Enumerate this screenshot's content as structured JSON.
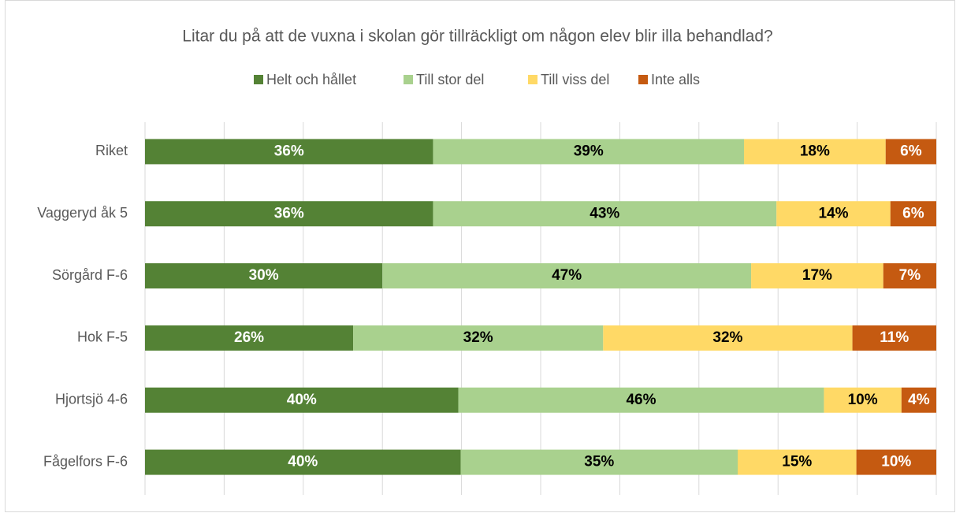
{
  "chart_data": {
    "type": "stacked_bar_horizontal",
    "title": "Litar du på att de vuxna i skolan gör tillräckligt om någon elev blir illa behandlad?",
    "categories": [
      "Riket",
      "Vaggeryd åk 5",
      "Sörgård F-6",
      "Hok F-5",
      "Hjortsjö 4-6",
      "Fågelfors F-6"
    ],
    "series": [
      {
        "name": "Helt och hållet",
        "color": "#548235",
        "label_color": "#ffffff",
        "values": [
          36.4,
          36.4,
          30.0,
          26.3,
          39.6,
          39.9
        ],
        "value_labels": [
          "36%",
          "36%",
          "30%",
          "26%",
          "40%",
          "40%"
        ]
      },
      {
        "name": "Till stor del",
        "color": "#a9d18e",
        "label_color": "#000000",
        "values": [
          39.3,
          43.4,
          46.6,
          31.6,
          46.2,
          35.0
        ],
        "value_labels": [
          "39%",
          "43%",
          "47%",
          "32%",
          "46%",
          "35%"
        ]
      },
      {
        "name": "Till viss del",
        "color": "#ffd966",
        "label_color": "#000000",
        "values": [
          17.9,
          14.4,
          16.7,
          31.5,
          9.8,
          15.0
        ],
        "value_labels": [
          "18%",
          "14%",
          "17%",
          "32%",
          "10%",
          "15%"
        ]
      },
      {
        "name": "Inte alls",
        "color": "#c55a11",
        "label_color": "#ffffff",
        "values": [
          6.4,
          5.8,
          6.7,
          10.6,
          4.4,
          10.1
        ],
        "value_labels": [
          "6%",
          "6%",
          "7%",
          "11%",
          "4%",
          "10%"
        ]
      }
    ],
    "xlim": [
      0,
      100
    ],
    "xticks": [
      0,
      10,
      20,
      30,
      40,
      50,
      60,
      70,
      80,
      90,
      100
    ],
    "grid": true,
    "legend": "top"
  }
}
